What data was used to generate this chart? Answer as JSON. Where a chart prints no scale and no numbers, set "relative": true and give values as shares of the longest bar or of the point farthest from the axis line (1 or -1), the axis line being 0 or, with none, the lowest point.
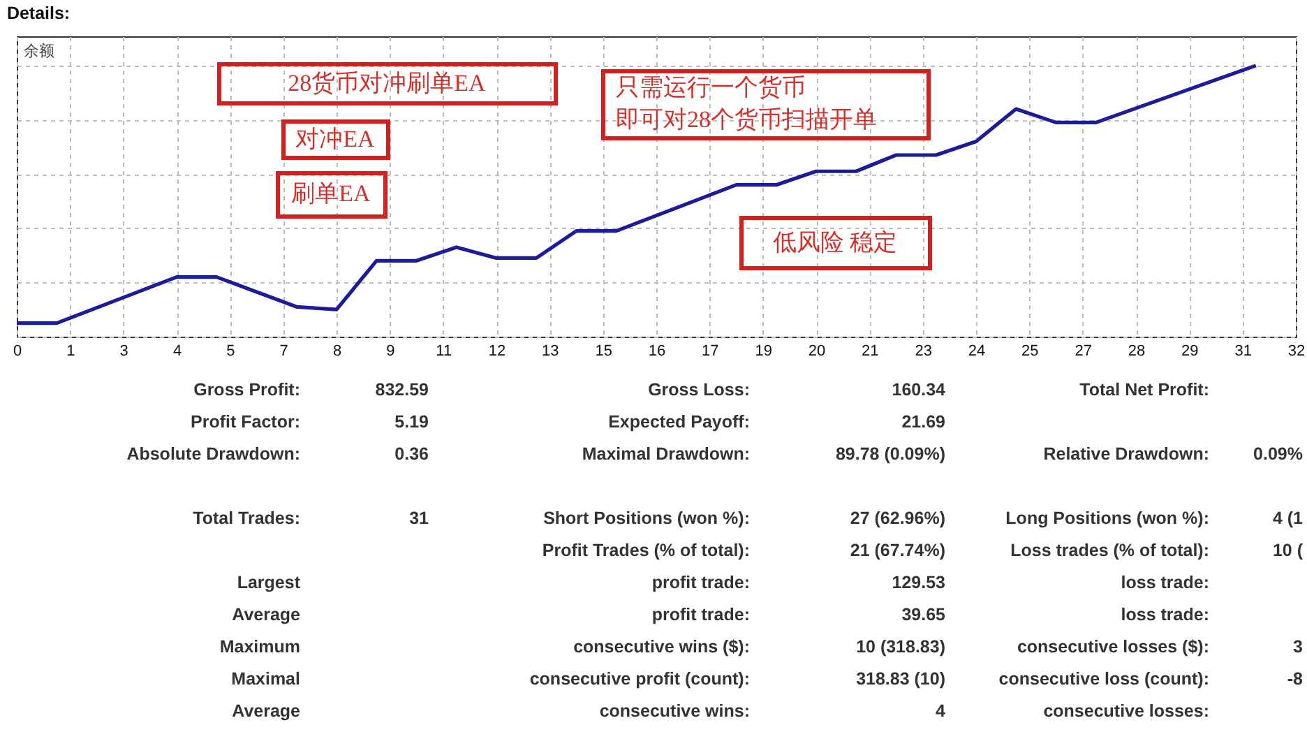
{
  "chart_data": {
    "type": "line",
    "title": "Details:",
    "ylabel": "余额",
    "annotations": [
      "28货币对冲刷单EA",
      "对冲EA",
      "刷单EA",
      "只需运行一个货币",
      "即可对28个货币扫描开单",
      "低风险 稳定",
      "Gross Profit:",
      "832.59",
      "Gross Loss:",
      "160.34",
      "Total Net Profit:",
      "Profit Factor:",
      "5.19",
      "Expected Payoff:",
      "21.69",
      "Absolute Drawdown:",
      "0.36",
      "Maximal Drawdown:",
      "89.78 (0.09%)",
      "Relative Drawdown:",
      "0.09%",
      "Total Trades:",
      "31",
      "Short Positions (won %):",
      "27 (62.96%)",
      "Long Positions (won %):",
      "4 (1",
      "Profit Trades (% of total):",
      "21 (67.74%)",
      "Loss trades (% of total):",
      "10 (",
      "Largest",
      "profit trade:",
      "129.53",
      "loss trade:",
      "Average",
      "profit trade:",
      "39.65",
      "loss trade:",
      "Maximum",
      "consecutive wins ($):",
      "10 (318.83)",
      "consecutive losses ($):",
      "3",
      "Maximal",
      "consecutive profit (count):",
      "318.83 (10)",
      "consecutive loss (count):",
      "-8",
      "Average",
      "consecutive wins:",
      "4",
      "consecutive losses:"
    ],
    "x": [
      0,
      1,
      4,
      5,
      7,
      8,
      9,
      10,
      11,
      12,
      13,
      14,
      15,
      18,
      19,
      20,
      21,
      22,
      23,
      24,
      25,
      26,
      27,
      31
    ],
    "series": [
      {
        "color": "#1c1c9a",
        "values": [
          0.05,
          0.05,
          0.22,
          0.22,
          0.11,
          0.1,
          0.28,
          0.28,
          0.33,
          0.29,
          0.29,
          0.39,
          0.39,
          0.56,
          0.56,
          0.61,
          0.61,
          0.67,
          0.67,
          0.72,
          0.84,
          0.79,
          0.79,
          1.0
        ]
      }
    ],
    "relative": true,
    "xlim": [
      0,
      32
    ],
    "xticks": [
      0,
      {
        "value": 1.333,
        "label": "1"
      },
      {
        "value": 2.667,
        "label": "3"
      },
      4,
      {
        "value": 5.333,
        "label": "5"
      },
      {
        "value": 6.667,
        "label": "7"
      },
      8,
      {
        "value": 9.333,
        "label": "9"
      },
      {
        "value": 10.667,
        "label": "11"
      },
      12,
      {
        "value": 13.333,
        "label": "13"
      },
      {
        "value": 14.667,
        "label": "15"
      },
      16,
      {
        "value": 17.333,
        "label": "17"
      },
      {
        "value": 18.667,
        "label": "19"
      },
      20,
      {
        "value": 21.333,
        "label": "21"
      },
      {
        "value": 22.667,
        "label": "23"
      },
      24,
      {
        "value": 25.333,
        "label": "25"
      },
      {
        "value": 26.667,
        "label": "27"
      },
      28,
      {
        "value": 29.333,
        "label": "29"
      },
      {
        "value": 30.667,
        "label": "31"
      },
      32
    ],
    "grid": true
  }
}
